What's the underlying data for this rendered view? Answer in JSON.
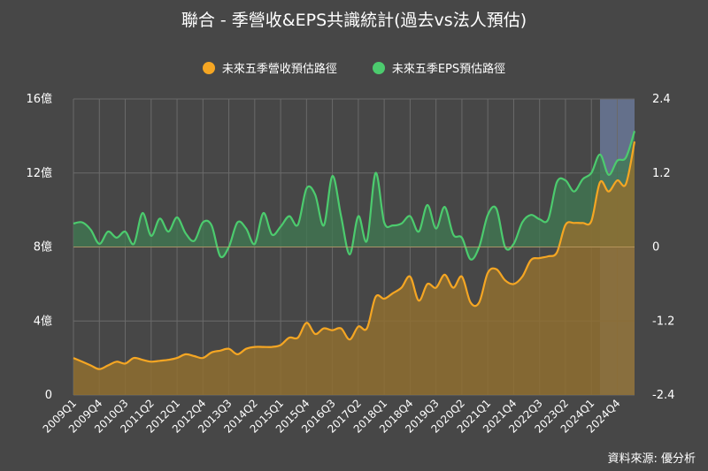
{
  "title": "聯合 - 季營收&EPS共識統計(過去vs法人預估)",
  "source": "資料來源: 優分析",
  "colors": {
    "background": "#474747",
    "grid": "#6a6a6a",
    "revenue": "#f5a623",
    "revenue_fill": "#8f6f30",
    "eps": "#4ccb6e",
    "eps_fill": "#3f7a52",
    "forecast_band": "#6a7898",
    "axis_text": "#ffffff"
  },
  "chart_data": {
    "type": "area",
    "title": "聯合 - 季營收&EPS共識統計(過去vs法人預估)",
    "legend_placement": "top-center",
    "grid": true,
    "x_tick_labels": [
      "2009Q1",
      "2009Q4",
      "2010Q3",
      "2011Q2",
      "2012Q1",
      "2012Q4",
      "2013Q3",
      "2014Q2",
      "2015Q1",
      "2015Q4",
      "2016Q3",
      "2017Q2",
      "2018Q1",
      "2018Q4",
      "2019Q3",
      "2020Q2",
      "2021Q1",
      "2021Q4",
      "2022Q3",
      "2023Q2",
      "2024Q1",
      "2024Q4"
    ],
    "x_tick_step": 3,
    "forecast_start_index": 61,
    "y_left": {
      "range": [
        0,
        16
      ],
      "ticks": [
        "0",
        "4億",
        "8億",
        "12億",
        "16億"
      ],
      "tick_values": [
        0,
        4,
        8,
        12,
        16
      ]
    },
    "y_right": {
      "range": [
        -2.4,
        2.4
      ],
      "ticks": [
        "-2.4",
        "-1.2",
        "0",
        "1.2",
        "2.4"
      ],
      "tick_values": [
        -2.4,
        -1.2,
        0,
        1.2,
        2.4
      ]
    },
    "series": [
      {
        "name": "未來五季營收預估路徑",
        "axis": "left",
        "values": [
          2.0,
          1.8,
          1.6,
          1.4,
          1.6,
          1.8,
          1.7,
          2.0,
          1.9,
          1.8,
          1.85,
          1.9,
          2.0,
          2.2,
          2.1,
          2.0,
          2.3,
          2.4,
          2.5,
          2.2,
          2.5,
          2.6,
          2.6,
          2.6,
          2.7,
          3.1,
          3.1,
          3.9,
          3.3,
          3.6,
          3.5,
          3.6,
          3.0,
          3.7,
          3.6,
          5.3,
          5.2,
          5.5,
          5.8,
          6.4,
          5.1,
          6.0,
          5.8,
          6.5,
          5.8,
          6.4,
          5.0,
          5.0,
          6.6,
          6.8,
          6.2,
          6.0,
          6.4,
          7.3,
          7.4,
          7.5,
          7.7,
          9.2,
          9.3,
          9.3,
          9.4,
          11.5,
          11.0,
          11.6,
          11.4,
          13.7
        ]
      },
      {
        "name": "未來五季EPS預估路徑",
        "axis": "right",
        "values": [
          0.38,
          0.4,
          0.28,
          0.05,
          0.25,
          0.15,
          0.25,
          0.05,
          0.55,
          0.18,
          0.46,
          0.25,
          0.48,
          0.22,
          0.1,
          0.4,
          0.35,
          -0.15,
          0.0,
          0.4,
          0.3,
          0.05,
          0.55,
          0.2,
          0.33,
          0.5,
          0.36,
          0.95,
          0.85,
          0.35,
          1.15,
          0.5,
          -0.12,
          0.5,
          0.1,
          1.2,
          0.4,
          0.35,
          0.38,
          0.5,
          0.25,
          0.68,
          0.3,
          0.65,
          0.2,
          0.15,
          -0.2,
          0.0,
          0.52,
          0.62,
          0.0,
          0.05,
          0.4,
          0.52,
          0.45,
          0.45,
          1.05,
          1.08,
          0.9,
          1.1,
          1.2,
          1.5,
          1.17,
          1.4,
          1.45,
          1.88
        ]
      }
    ]
  }
}
